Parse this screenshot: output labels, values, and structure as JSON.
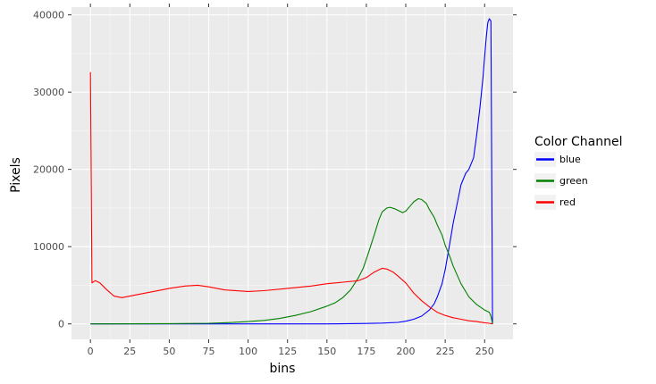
{
  "chart_data": {
    "type": "line",
    "title": "",
    "xlabel": "bins",
    "ylabel": "Pixels",
    "xlim": [
      -12,
      268
    ],
    "ylim": [
      -2000,
      41000
    ],
    "xticks": [
      0,
      25,
      50,
      75,
      100,
      125,
      150,
      175,
      200,
      225,
      250
    ],
    "yticks": [
      0,
      10000,
      20000,
      30000,
      40000
    ],
    "grid": true,
    "legend": {
      "title": "Color Channel",
      "placement": "right"
    },
    "series": [
      {
        "name": "blue",
        "color": "#0000ff",
        "x": [
          0,
          50,
          100,
          150,
          175,
          185,
          195,
          200,
          205,
          210,
          215,
          218,
          220,
          223,
          225,
          228,
          230,
          233,
          235,
          238,
          240,
          243,
          245,
          247,
          249,
          250,
          251,
          252,
          253,
          254,
          255
        ],
        "y": [
          0,
          0,
          0,
          0,
          60,
          100,
          200,
          350,
          600,
          1000,
          1800,
          2600,
          3500,
          5200,
          7000,
          10500,
          13000,
          16000,
          18000,
          19500,
          20000,
          21500,
          24500,
          28000,
          32000,
          34500,
          37000,
          39000,
          39500,
          39200,
          0
        ]
      },
      {
        "name": "green",
        "color": "#008000",
        "x": [
          0,
          25,
          50,
          75,
          90,
          100,
          110,
          120,
          130,
          140,
          150,
          155,
          160,
          165,
          170,
          173,
          176,
          180,
          183,
          185,
          188,
          190,
          193,
          195,
          198,
          200,
          203,
          205,
          208,
          210,
          213,
          215,
          218,
          220,
          223,
          225,
          228,
          230,
          235,
          240,
          245,
          250,
          253,
          254,
          255
        ],
        "y": [
          0,
          10,
          30,
          80,
          180,
          300,
          450,
          700,
          1100,
          1600,
          2300,
          2700,
          3400,
          4400,
          6000,
          7200,
          9000,
          11500,
          13500,
          14500,
          15000,
          15100,
          14900,
          14700,
          14400,
          14600,
          15300,
          15800,
          16200,
          16100,
          15600,
          14800,
          13800,
          12800,
          11500,
          10200,
          8700,
          7500,
          5200,
          3500,
          2500,
          1800,
          1500,
          1000,
          0
        ]
      },
      {
        "name": "red",
        "color": "#ff0000",
        "x": [
          0,
          1,
          3,
          6,
          10,
          15,
          20,
          25,
          30,
          40,
          50,
          60,
          68,
          75,
          85,
          100,
          110,
          125,
          140,
          150,
          160,
          170,
          175,
          180,
          185,
          188,
          192,
          195,
          200,
          205,
          210,
          215,
          220,
          225,
          230,
          235,
          240,
          245,
          250,
          253,
          255
        ],
        "y": [
          32600,
          5300,
          5600,
          5300,
          4500,
          3600,
          3400,
          3600,
          3800,
          4200,
          4600,
          4900,
          5000,
          4800,
          4400,
          4200,
          4300,
          4600,
          4900,
          5200,
          5400,
          5600,
          6000,
          6700,
          7200,
          7100,
          6700,
          6200,
          5300,
          4000,
          3000,
          2200,
          1500,
          1100,
          800,
          600,
          400,
          300,
          150,
          80,
          0
        ]
      }
    ]
  }
}
